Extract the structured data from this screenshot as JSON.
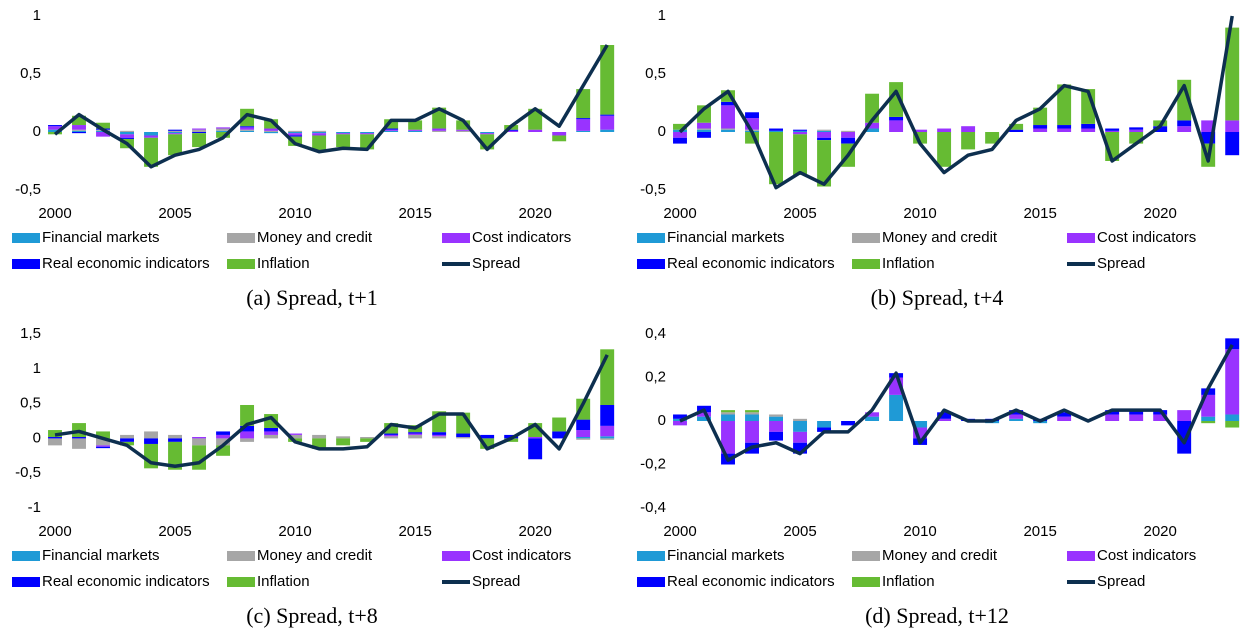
{
  "chart_data": [
    {
      "type": "bar",
      "stacked": true,
      "title": "(a) Spread, t+1",
      "x": [
        2000,
        2001,
        2002,
        2003,
        2004,
        2005,
        2006,
        2007,
        2008,
        2009,
        2010,
        2011,
        2012,
        2013,
        2014,
        2015,
        2016,
        2017,
        2018,
        2019,
        2020,
        2021,
        2022,
        2023
      ],
      "xlim": [
        2000,
        2023.2
      ],
      "xticks": [
        2000,
        2005,
        2010,
        2015,
        2020
      ],
      "ylim": [
        -0.5,
        1
      ],
      "yticks": [
        {
          "value": -0.5,
          "label": "-0,5"
        },
        0,
        {
          "value": 0.5,
          "label": "0,5"
        },
        1
      ],
      "series": [
        {
          "name": "Financial markets",
          "color": "#1f9ad6",
          "values": [
            0.02,
            0.01,
            0.01,
            -0.02,
            -0.03,
            -0.01,
            0,
            0.01,
            0.01,
            -0.01,
            -0.01,
            -0.01,
            -0.01,
            -0.01,
            0.01,
            0.01,
            0,
            0,
            -0.01,
            0,
            0,
            0,
            0.01,
            0.02
          ]
        },
        {
          "name": "Money and credit",
          "color": "#a6a6a6",
          "values": [
            0,
            0.01,
            0.01,
            0.01,
            0,
            0.01,
            0.02,
            0.02,
            0.01,
            0.01,
            0.01,
            0.01,
            0,
            0,
            0,
            0,
            0.01,
            0.01,
            0,
            0,
            0,
            0,
            0,
            0
          ]
        },
        {
          "name": "Cost indicators",
          "color": "#9933ff",
          "values": [
            0.03,
            0.04,
            -0.04,
            -0.03,
            -0.02,
            -0.01,
            0.01,
            0.01,
            0.02,
            0.02,
            -0.02,
            -0.02,
            -0.01,
            -0.01,
            0.01,
            0.01,
            0.02,
            0.01,
            -0.01,
            0.01,
            0.02,
            -0.03,
            0.1,
            0.12
          ]
        },
        {
          "name": "Real economic indicators",
          "color": "#0000ff",
          "values": [
            0.01,
            -0.01,
            0.01,
            -0.01,
            0,
            0.01,
            -0.01,
            0,
            0.01,
            0,
            -0.01,
            0,
            0,
            0,
            0.01,
            0,
            0,
            0,
            0,
            0.01,
            0,
            0,
            0.01,
            0.01
          ]
        },
        {
          "name": "Inflation",
          "color": "#66bb33",
          "values": [
            -0.02,
            0.08,
            0.05,
            -0.08,
            -0.25,
            -0.18,
            -0.12,
            -0.05,
            0.15,
            0.08,
            -0.08,
            -0.13,
            -0.11,
            -0.13,
            0.08,
            0.08,
            0.18,
            0.08,
            -0.13,
            0.04,
            0.18,
            -0.05,
            0.25,
            0.6
          ]
        },
        {
          "name": "Spread",
          "color": "#0d2f4f",
          "type": "line",
          "values": [
            -0.02,
            0.15,
            0.02,
            -0.1,
            -0.3,
            -0.2,
            -0.15,
            -0.05,
            0.15,
            0.1,
            -0.1,
            -0.17,
            -0.14,
            -0.15,
            0.1,
            0.1,
            0.2,
            0.1,
            -0.15,
            0.05,
            0.2,
            0.05,
            0.4,
            0.75
          ]
        }
      ]
    },
    {
      "type": "bar",
      "stacked": true,
      "title": "(b) Spread, t+4",
      "x": [
        2000,
        2001,
        2002,
        2003,
        2004,
        2005,
        2006,
        2007,
        2008,
        2009,
        2010,
        2011,
        2012,
        2013,
        2014,
        2015,
        2016,
        2017,
        2018,
        2019,
        2020,
        2021,
        2022,
        2023
      ],
      "xlim": [
        2000,
        2023.2
      ],
      "xticks": [
        2000,
        2005,
        2010,
        2015,
        2020
      ],
      "ylim": [
        -0.5,
        1
      ],
      "yticks": [
        {
          "value": -0.5,
          "label": "-0,5"
        },
        0,
        {
          "value": 0.5,
          "label": "0,5"
        },
        1
      ],
      "series": [
        {
          "name": "Financial markets",
          "color": "#1f9ad6",
          "values": [
            0.02,
            0.02,
            0.02,
            0.01,
            0.01,
            0.01,
            0.01,
            0,
            0.03,
            0,
            0,
            0,
            0,
            0,
            0,
            0,
            0,
            0,
            0,
            0,
            0,
            0,
            0,
            0
          ]
        },
        {
          "name": "Money and credit",
          "color": "#a6a6a6",
          "values": [
            0,
            0.01,
            0.01,
            0.01,
            0,
            0,
            0.01,
            0.01,
            0,
            0,
            0,
            0,
            0,
            0,
            0,
            0,
            0,
            0,
            0,
            0,
            0,
            0,
            0,
            0
          ]
        },
        {
          "name": "Cost indicators",
          "color": "#9933ff",
          "values": [
            -0.05,
            0.05,
            0.2,
            0.1,
            0,
            -0.02,
            -0.05,
            -0.05,
            0.05,
            0.1,
            0.02,
            0.03,
            0.05,
            0,
            0,
            0.03,
            0.03,
            0.03,
            0.01,
            0.02,
            0,
            0.05,
            0.1,
            0.1
          ]
        },
        {
          "name": "Real economic indicators",
          "color": "#0000ff",
          "values": [
            -0.05,
            -0.05,
            0.03,
            0.05,
            0.02,
            0.01,
            -0.02,
            -0.05,
            0,
            0.03,
            0,
            0,
            0,
            0,
            0.02,
            0.03,
            0.03,
            0.04,
            0.02,
            0.02,
            0.05,
            0.05,
            -0.1,
            -0.2
          ]
        },
        {
          "name": "Inflation",
          "color": "#66bb33",
          "values": [
            0.05,
            0.15,
            0.1,
            -0.1,
            -0.45,
            -0.35,
            -0.4,
            -0.2,
            0.25,
            0.3,
            -0.1,
            -0.3,
            -0.15,
            -0.1,
            0.05,
            0.15,
            0.35,
            0.3,
            -0.25,
            -0.1,
            0.05,
            0.35,
            -0.2,
            0.8
          ]
        },
        {
          "name": "Spread",
          "color": "#0d2f4f",
          "type": "line",
          "values": [
            0,
            0.2,
            0.35,
            0,
            -0.48,
            -0.35,
            -0.45,
            -0.2,
            0.1,
            0.35,
            -0.1,
            -0.35,
            -0.2,
            -0.15,
            0.1,
            0.2,
            0.4,
            0.35,
            -0.25,
            -0.1,
            0.05,
            0.4,
            -0.25,
            1
          ]
        }
      ]
    },
    {
      "type": "bar",
      "stacked": true,
      "title": "(c) Spread, t+8",
      "x": [
        2000,
        2001,
        2002,
        2003,
        2004,
        2005,
        2006,
        2007,
        2008,
        2009,
        2010,
        2011,
        2012,
        2013,
        2014,
        2015,
        2016,
        2017,
        2018,
        2019,
        2020,
        2021,
        2022,
        2023
      ],
      "xlim": [
        2000,
        2023.2
      ],
      "xticks": [
        2000,
        2005,
        2010,
        2015,
        2020
      ],
      "ylim": [
        -1,
        1.5
      ],
      "yticks": [
        -1,
        {
          "value": -0.5,
          "label": "-0,5"
        },
        0,
        {
          "value": 0.5,
          "label": "0,5"
        },
        1,
        {
          "value": 1.5,
          "label": "1,5"
        }
      ],
      "series": [
        {
          "name": "Financial markets",
          "color": "#1f9ad6",
          "values": [
            0,
            0,
            0,
            0,
            0,
            0,
            0,
            0,
            0,
            0,
            0,
            0,
            0,
            0,
            0,
            0,
            0,
            0,
            0,
            0,
            0,
            0,
            0.02,
            0.03
          ]
        },
        {
          "name": "Money and credit",
          "color": "#a6a6a6",
          "values": [
            -0.1,
            -0.15,
            -0.1,
            0.05,
            0.1,
            0.05,
            -0.1,
            -0.1,
            -0.05,
            0.05,
            0.05,
            0.05,
            0.03,
            0.02,
            0.03,
            0.05,
            0.03,
            0.02,
            0,
            0,
            0,
            0,
            -0.02,
            -0.02
          ]
        },
        {
          "name": "Cost indicators",
          "color": "#9933ff",
          "values": [
            0,
            0,
            -0.02,
            0,
            0,
            0,
            0.02,
            0.05,
            0.1,
            0.05,
            0.02,
            0,
            0,
            0,
            0.02,
            0.02,
            0.02,
            0,
            0,
            0,
            0.02,
            0,
            0.1,
            0.15
          ]
        },
        {
          "name": "Real economic indicators",
          "color": "#0000ff",
          "values": [
            0.02,
            0.02,
            -0.02,
            -0.05,
            -0.08,
            -0.05,
            0,
            0.05,
            0.08,
            0.05,
            0,
            0,
            0,
            0,
            0.02,
            0.02,
            0.04,
            0.05,
            0.05,
            0.05,
            -0.3,
            0.1,
            0.15,
            0.3
          ]
        },
        {
          "name": "Inflation",
          "color": "#66bb33",
          "values": [
            0.1,
            0.2,
            0.1,
            -0.05,
            -0.35,
            -0.4,
            -0.35,
            -0.15,
            0.3,
            0.2,
            -0.05,
            -0.15,
            -0.1,
            -0.05,
            0.15,
            0.1,
            0.3,
            0.3,
            -0.15,
            -0.05,
            0.2,
            0.2,
            0.3,
            0.8
          ]
        },
        {
          "name": "Spread",
          "color": "#0d2f4f",
          "type": "line",
          "values": [
            0.05,
            0.1,
            0,
            -0.1,
            -0.35,
            -0.4,
            -0.35,
            -0.1,
            0.2,
            0.3,
            -0.05,
            -0.15,
            -0.15,
            -0.12,
            0.2,
            0.15,
            0.35,
            0.35,
            -0.15,
            0,
            0.2,
            -0.15,
            0.5,
            1.2
          ]
        }
      ]
    },
    {
      "type": "bar",
      "stacked": true,
      "title": "(d) Spread, t+12",
      "x": [
        2000,
        2001,
        2002,
        2003,
        2004,
        2005,
        2006,
        2007,
        2008,
        2009,
        2010,
        2011,
        2012,
        2013,
        2014,
        2015,
        2016,
        2017,
        2018,
        2019,
        2020,
        2021,
        2022,
        2023
      ],
      "xlim": [
        2000,
        2023.2
      ],
      "xticks": [
        2000,
        2005,
        2010,
        2015,
        2020
      ],
      "ylim": [
        -0.4,
        0.4
      ],
      "yticks": [
        {
          "value": -0.4,
          "label": "-0,4"
        },
        {
          "value": -0.2,
          "label": "-0,2"
        },
        0,
        {
          "value": 0.2,
          "label": "0,2"
        },
        {
          "value": 0.4,
          "label": "0,4"
        }
      ],
      "series": [
        {
          "name": "Financial markets",
          "color": "#1f9ad6",
          "values": [
            0.01,
            0.02,
            0.03,
            0.03,
            0.02,
            -0.05,
            -0.03,
            0,
            0.02,
            0.12,
            -0.03,
            0,
            0,
            -0.01,
            0.01,
            -0.01,
            0,
            0,
            0,
            0,
            0,
            0,
            0.02,
            0.03
          ]
        },
        {
          "name": "Money and credit",
          "color": "#a6a6a6",
          "values": [
            0,
            0,
            0.01,
            0.01,
            0.01,
            0.01,
            0,
            0,
            0,
            0,
            0,
            0,
            0,
            0,
            0,
            0,
            0,
            0,
            0,
            0,
            0,
            0,
            0,
            0
          ]
        },
        {
          "name": "Cost indicators",
          "color": "#9933ff",
          "values": [
            -0.02,
            0.02,
            -0.15,
            -0.1,
            -0.05,
            -0.05,
            0,
            0,
            0.02,
            0.08,
            -0.05,
            0.01,
            0,
            0,
            0.02,
            0,
            0.02,
            0,
            0.03,
            0.03,
            0.03,
            0.05,
            0.1,
            0.3
          ]
        },
        {
          "name": "Real economic indicators",
          "color": "#0000ff",
          "values": [
            0.02,
            0.03,
            -0.05,
            -0.05,
            -0.04,
            -0.05,
            -0.02,
            -0.02,
            0,
            0.02,
            -0.03,
            0.03,
            0.01,
            0.01,
            0.02,
            0.01,
            0.02,
            0,
            0.02,
            0.02,
            0.02,
            -0.15,
            0.03,
            0.05
          ]
        },
        {
          "name": "Inflation",
          "color": "#66bb33",
          "values": [
            0,
            0,
            0.01,
            0.01,
            0,
            0,
            0,
            0,
            0,
            0,
            0,
            0,
            0,
            0,
            0,
            0,
            0,
            0,
            0,
            0,
            0,
            0,
            -0.01,
            -0.03
          ]
        },
        {
          "name": "Spread",
          "color": "#0d2f4f",
          "type": "line",
          "values": [
            0,
            0.05,
            -0.18,
            -0.12,
            -0.1,
            -0.15,
            -0.05,
            -0.05,
            0.05,
            0.22,
            -0.1,
            0.05,
            0,
            0,
            0.05,
            0,
            0.05,
            0,
            0.05,
            0.05,
            0.05,
            -0.1,
            0.15,
            0.35
          ]
        }
      ]
    }
  ]
}
